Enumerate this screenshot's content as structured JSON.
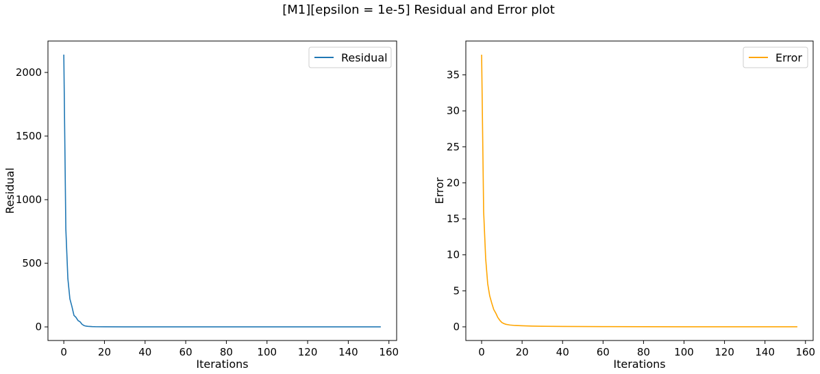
{
  "suptitle": "[M1][epsilon = 1e-5] Residual and Error plot",
  "chart_data": [
    {
      "type": "line",
      "title": "",
      "xlabel": "Iterations",
      "ylabel": "Residual",
      "xlim": [
        -7.8,
        163.8
      ],
      "ylim": [
        -107,
        2247
      ],
      "xticks": [
        0,
        20,
        40,
        60,
        80,
        100,
        120,
        140,
        160
      ],
      "yticks": [
        0,
        500,
        1000,
        1500,
        2000
      ],
      "legend": "top-right",
      "grid": false,
      "series": [
        {
          "name": "Residual",
          "color": "#1f77b4",
          "x": [
            0,
            1,
            2,
            3,
            4,
            5,
            6,
            7,
            8,
            9,
            10,
            11,
            12,
            14,
            16,
            20,
            30,
            40,
            60,
            80,
            100,
            120,
            140,
            156
          ],
          "y": [
            2140,
            770,
            380,
            220,
            160,
            90,
            75,
            50,
            40,
            20,
            10,
            6,
            4,
            2,
            1.2,
            0.8,
            0.4,
            0.2,
            0.1,
            0.05,
            0.02,
            0.01,
            0.005,
            0.001
          ]
        }
      ]
    },
    {
      "type": "line",
      "title": "",
      "xlabel": "Iterations",
      "ylabel": "Error",
      "xlim": [
        -7.8,
        163.8
      ],
      "ylim": [
        -1.9,
        39.7
      ],
      "xticks": [
        0,
        20,
        40,
        60,
        80,
        100,
        120,
        140,
        160
      ],
      "yticks": [
        0,
        5,
        10,
        15,
        20,
        25,
        30,
        35
      ],
      "legend": "top-right",
      "grid": false,
      "series": [
        {
          "name": "Error",
          "color": "#ffa500",
          "x": [
            0,
            1,
            2,
            3,
            4,
            5,
            6,
            7,
            8,
            9,
            10,
            11,
            12,
            14,
            16,
            20,
            25,
            30,
            40,
            50,
            60,
            80,
            100,
            120,
            140,
            156
          ],
          "y": [
            37.8,
            16.0,
            9.5,
            6.0,
            4.3,
            3.3,
            2.4,
            1.9,
            1.3,
            0.9,
            0.6,
            0.45,
            0.35,
            0.25,
            0.2,
            0.15,
            0.1,
            0.08,
            0.05,
            0.04,
            0.03,
            0.02,
            0.01,
            0.005,
            0.002,
            0.001
          ]
        }
      ]
    }
  ]
}
